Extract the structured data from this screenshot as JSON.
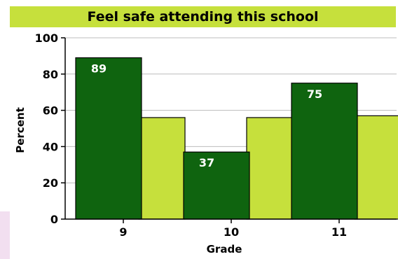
{
  "chart_data": {
    "type": "bar",
    "title": "Feel safe attending this school",
    "xlabel": "Grade",
    "ylabel": "Percent",
    "categories": [
      "9",
      "10",
      "11"
    ],
    "series": [
      {
        "values": [
          89,
          37,
          75
        ],
        "data_labels": [
          "89",
          "37",
          "75"
        ],
        "color": "#0f640f"
      },
      {
        "values": [
          56,
          56,
          57
        ],
        "color": "#c6e03c"
      }
    ],
    "ylim": [
      0,
      100
    ],
    "yticks": [
      "0",
      "20",
      "40",
      "60",
      "80",
      "100"
    ],
    "grid": true,
    "legend": "none",
    "colors": {
      "title_bar": "#c6e03c",
      "grid": "#bcbcbc",
      "side_strip": "#f2dff0"
    }
  }
}
